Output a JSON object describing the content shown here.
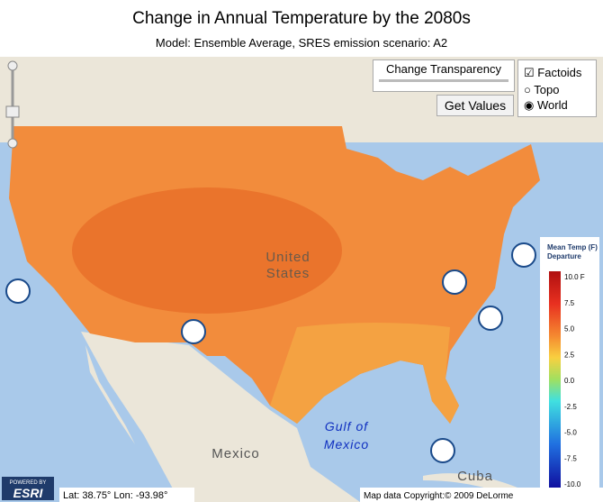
{
  "header": {
    "title": "Change in Annual Temperature by the 2080s",
    "subtitle": "Model: Ensemble Average, SRES emission scenario: A2"
  },
  "controls": {
    "transparency": "Change Transparency",
    "get_values": "Get Values",
    "factoids": "Factoids",
    "topo": "Topo",
    "world": "World"
  },
  "map_labels": [
    "United",
    "States",
    "Gulf of",
    "Mexico",
    "Mexico",
    "Cuba"
  ],
  "legend": {
    "title": [
      "Mean Temp (F)",
      "Departure"
    ],
    "labels": [
      "10.0 F",
      "7.5",
      "5.0",
      "2.5",
      "0.0",
      "-2.5",
      "-5.0",
      "-7.5",
      "-10.0"
    ]
  },
  "status": {
    "logo": [
      "POWERED BY",
      "ESRI"
    ],
    "coords": "Lat: 38.75° Lon: -93.98°",
    "copyright": "Map data Copyright:© 2009 DeLorme"
  }
}
